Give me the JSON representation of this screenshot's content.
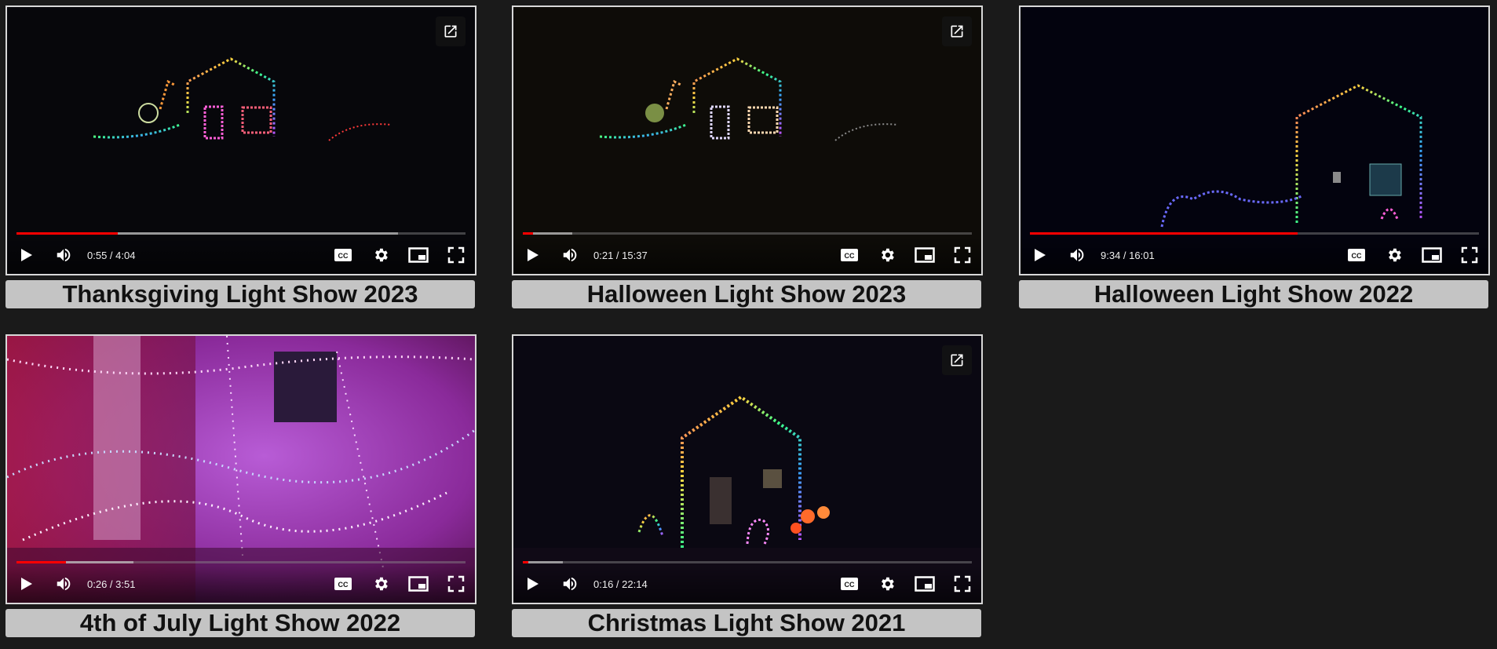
{
  "videos": [
    {
      "title": "Thanksgiving Light Show 2023",
      "time": "0:55 / 4:04",
      "progress": 0.225,
      "buffered": 0.85
    },
    {
      "title": "Halloween Light Show 2023",
      "time": "0:21 / 15:37",
      "progress": 0.022,
      "buffered": 0.11
    },
    {
      "title": "Halloween Light Show 2022",
      "time": "9:34 / 16:01",
      "progress": 0.597,
      "buffered": 0.597
    },
    {
      "title": "4th of July Light Show 2022",
      "time": "0:26 / 3:51",
      "progress": 0.11,
      "buffered": 0.26
    },
    {
      "title": "Christmas Light Show 2021",
      "time": "0:16 / 22:14",
      "progress": 0.012,
      "buffered": 0.09
    }
  ],
  "icons": {
    "play": "play-icon",
    "volume": "volume-icon",
    "captions": "closed-captions-icon",
    "settings": "gear-icon",
    "miniplayer": "miniplayer-icon",
    "fullscreen": "fullscreen-icon",
    "popout": "open-in-new-window-icon"
  },
  "colors": {
    "background": "#1a1a1a",
    "caption_bg": "#c4c4c4",
    "progress_played": "#ff0000"
  }
}
